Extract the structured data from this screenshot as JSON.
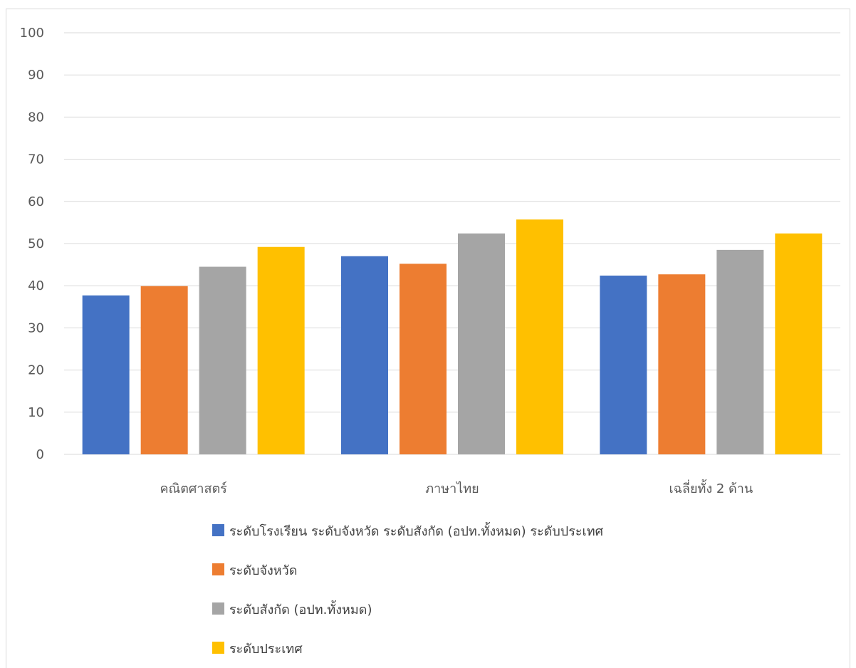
{
  "chart_data": {
    "type": "bar",
    "title": "",
    "xlabel": "",
    "ylabel": "",
    "ylim": [
      0,
      100
    ],
    "yticks": [
      0,
      10,
      20,
      30,
      40,
      50,
      60,
      70,
      80,
      90,
      100
    ],
    "grid": true,
    "legend_position": "bottom",
    "categories": [
      "คณิตศาสตร์",
      "ภาษาไทย",
      "เฉลี่ยทั้ง 2 ด้าน"
    ],
    "series": [
      {
        "name": "ระดับโรงเรียน ระดับจังหวัด ระดับสังกัด (อปท.ทั้งหมด) ระดับประเทศ",
        "color": "#4472c4",
        "values": [
          37.7,
          47.0,
          42.4
        ]
      },
      {
        "name": "ระดับจังหวัด",
        "color": "#ed7d31",
        "values": [
          39.9,
          45.2,
          42.7
        ]
      },
      {
        "name": "ระดับสังกัด (อปท.ทั้งหมด)",
        "color": "#a5a5a5",
        "values": [
          44.5,
          52.4,
          48.5
        ]
      },
      {
        "name": "ระดับประเทศ",
        "color": "#ffc000",
        "values": [
          49.2,
          55.7,
          52.4
        ]
      }
    ]
  }
}
